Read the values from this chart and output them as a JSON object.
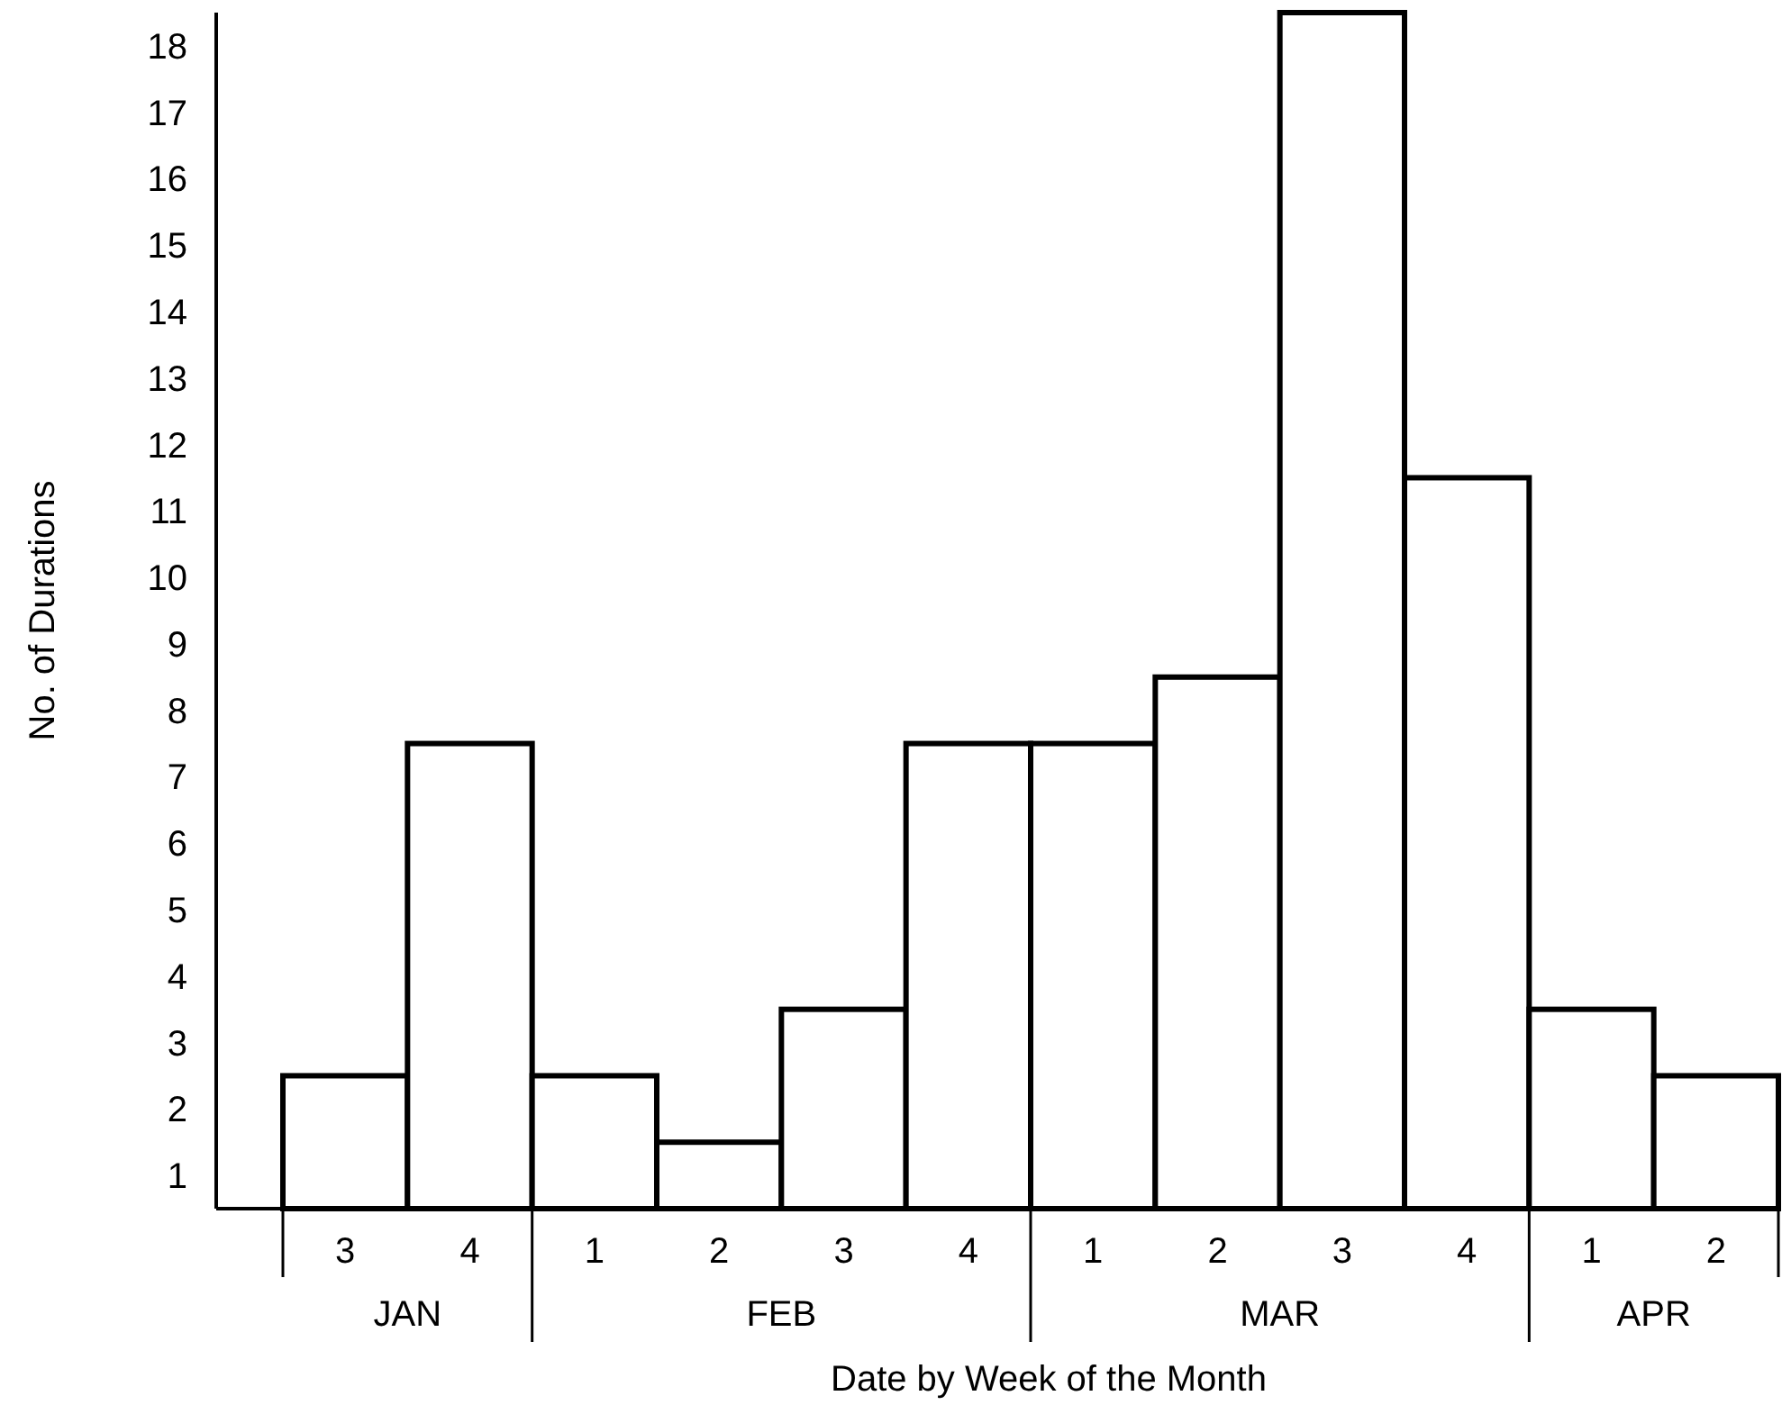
{
  "chart_data": {
    "type": "bar",
    "xlabel": "Date by Week of the Month",
    "ylabel": "No. of Durations",
    "categories": [
      "3",
      "4",
      "1",
      "2",
      "3",
      "4",
      "1",
      "2",
      "3",
      "4",
      "1",
      "2"
    ],
    "values": [
      2,
      7,
      2,
      1,
      3,
      7,
      7,
      8,
      18,
      11,
      3,
      2
    ],
    "color": "#ffffff",
    "ylim": [
      0,
      18
    ],
    "yticks": [
      {
        "value": 0.5,
        "label": "1"
      },
      {
        "value": 1.5,
        "label": "2"
      },
      {
        "value": 2.5,
        "label": "3"
      },
      {
        "value": 3.5,
        "label": "4"
      },
      {
        "value": 4.5,
        "label": "5"
      },
      {
        "value": 5.5,
        "label": "6"
      },
      {
        "value": 6.5,
        "label": "7"
      },
      {
        "value": 7.5,
        "label": "8"
      },
      {
        "value": 8.5,
        "label": "9"
      },
      {
        "value": 9.5,
        "label": "10"
      },
      {
        "value": 10.5,
        "label": "11"
      },
      {
        "value": 11.5,
        "label": "12"
      },
      {
        "value": 12.5,
        "label": "13"
      },
      {
        "value": 13.5,
        "label": "14"
      },
      {
        "value": 14.5,
        "label": "15"
      },
      {
        "value": 15.5,
        "label": "16"
      },
      {
        "value": 16.5,
        "label": "17"
      },
      {
        "value": 17.5,
        "label": "18"
      }
    ],
    "annotations": [
      "JAN",
      "FEB",
      "MAR",
      "APR"
    ],
    "grid": false
  }
}
